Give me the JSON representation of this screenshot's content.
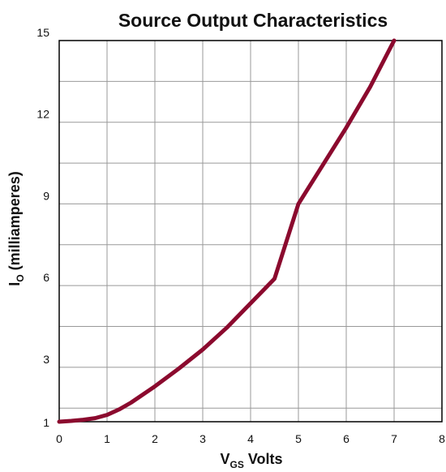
{
  "chart_data": {
    "type": "line",
    "title": "Source Output Characteristics",
    "xlabel": {
      "main": "V",
      "sub": "GS",
      "suffix": " Volts"
    },
    "ylabel": {
      "main": "I",
      "sub": "O",
      "suffix": " (milliamperes)"
    },
    "xlim": [
      0,
      8
    ],
    "ylim": [
      1,
      15
    ],
    "x_ticks": [
      "0",
      "1",
      "2",
      "3",
      "4",
      "5",
      "6",
      "7",
      "8"
    ],
    "y_ticks": [
      "1",
      "3",
      "6",
      "9",
      "12",
      "15"
    ],
    "y_tick_values": [
      1,
      3,
      6,
      9,
      12,
      15
    ],
    "grid": true,
    "colors": {
      "line": "#8b0a2e",
      "grid": "#999999",
      "axis": "#000000"
    },
    "series": [
      {
        "x": [
          0,
          0.25,
          0.5,
          0.75,
          1.0,
          1.25,
          1.5,
          2.0,
          2.5,
          3.0,
          3.5,
          4.0,
          4.5,
          5.0,
          5.5,
          6.0,
          6.5,
          7.0
        ],
        "y": [
          1.0,
          1.03,
          1.07,
          1.13,
          1.25,
          1.45,
          1.7,
          2.3,
          2.95,
          3.65,
          4.45,
          5.35,
          6.25,
          9.0,
          10.4,
          11.8,
          13.3,
          15.0
        ]
      }
    ]
  }
}
